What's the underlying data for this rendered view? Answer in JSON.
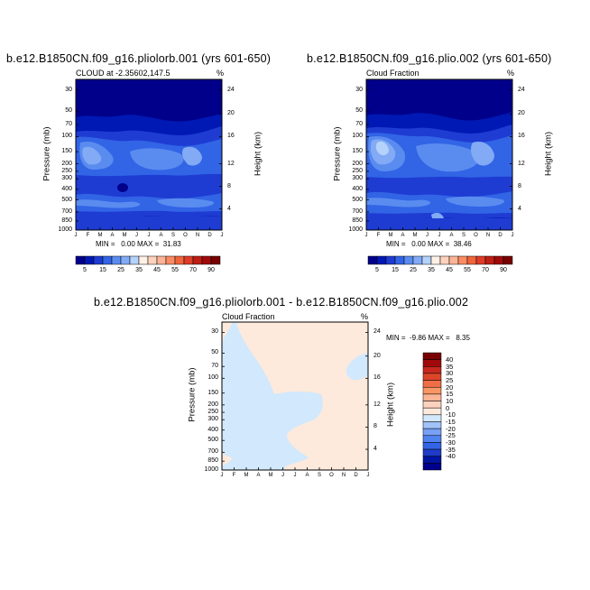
{
  "panel1": {
    "title": "b.e12.B1850CN.f09_g16.pliolorb.001 (yrs 601-650)",
    "subtitle": "CLOUD at -2.35602,147.5",
    "units": "%",
    "minmax": "MIN =   0.00 MAX =  31.83"
  },
  "panel2": {
    "title": "b.e12.B1850CN.f09_g16.plio.002 (yrs 601-650)",
    "subtitle": "Cloud Fraction",
    "units": "%",
    "minmax": "MIN =   0.00 MAX =  38.46"
  },
  "panel3": {
    "title": "b.e12.B1850CN.f09_g16.pliolorb.001 - b.e12.B1850CN.f09_g16.plio.002",
    "subtitle": "Cloud Fraction",
    "units": "%",
    "minmax": "MIN =  -9.86 MAX =   8.35"
  },
  "axes": {
    "ylabel_left": "Pressure (mb)",
    "ylabel_right": "Height (km)"
  },
  "colors": {
    "seq": [
      "#00008b",
      "#0019b4",
      "#1e3cd2",
      "#3264e6",
      "#5a8cf0",
      "#82aaf5",
      "#b4d2fa",
      "#fff0e6",
      "#fdd2be",
      "#fcb496",
      "#fa8c64",
      "#f0643c",
      "#dc3c28",
      "#be1e14",
      "#a00a0a",
      "#780000"
    ],
    "diff": [
      "#00008b",
      "#0014a0",
      "#1e3cc8",
      "#3264e6",
      "#5082f0",
      "#78a0f5",
      "#a0c3fa",
      "#d2e8fc",
      "#fdeadc",
      "#fcd2be",
      "#fab496",
      "#f89664",
      "#f06e46",
      "#dc4628",
      "#c8281e",
      "#a00a0a",
      "#780000"
    ]
  },
  "chart_data": [
    {
      "type": "heatmap",
      "title": "b.e12.B1850CN.f09_g16.pliolorb.001 (yrs 601-650)",
      "variable": "CLOUD at -2.35602,147.5",
      "units": "%",
      "xlabel": "",
      "ylabel": "Pressure (mb)",
      "ylabel_right": "Height (km)",
      "x_ticks": [
        "J",
        "F",
        "M",
        "A",
        "M",
        "J",
        "J",
        "A",
        "S",
        "O",
        "N",
        "D",
        "J"
      ],
      "y_ticks": [
        "30",
        "50",
        "70",
        "100",
        "150",
        "200",
        "250",
        "300",
        "400",
        "500",
        "700",
        "850",
        "1000"
      ],
      "y_right_ticks": [
        "24",
        "20",
        "16",
        "12",
        "8",
        "4"
      ],
      "colorbar_labels": [
        "5",
        "15",
        "25",
        "35",
        "45",
        "55",
        "70",
        "90"
      ],
      "min": 0.0,
      "max": 31.83
    },
    {
      "type": "heatmap",
      "title": "b.e12.B1850CN.f09_g16.plio.002 (yrs 601-650)",
      "variable": "Cloud Fraction",
      "units": "%",
      "xlabel": "",
      "ylabel": "Pressure (mb)",
      "ylabel_right": "Height (km)",
      "x_ticks": [
        "J",
        "F",
        "M",
        "A",
        "M",
        "J",
        "J",
        "A",
        "S",
        "O",
        "N",
        "D",
        "J"
      ],
      "y_ticks": [
        "30",
        "50",
        "70",
        "100",
        "150",
        "200",
        "250",
        "300",
        "400",
        "500",
        "700",
        "850",
        "1000"
      ],
      "y_right_ticks": [
        "24",
        "20",
        "16",
        "12",
        "8",
        "4"
      ],
      "colorbar_labels": [
        "5",
        "15",
        "25",
        "35",
        "45",
        "55",
        "70",
        "90"
      ],
      "min": 0.0,
      "max": 38.46
    },
    {
      "type": "heatmap",
      "title": "b.e12.B1850CN.f09_g16.pliolorb.001 - b.e12.B1850CN.f09_g16.plio.002",
      "variable": "Cloud Fraction",
      "units": "%",
      "xlabel": "",
      "ylabel": "Pressure (mb)",
      "ylabel_right": "Height (km)",
      "x_ticks": [
        "J",
        "F",
        "M",
        "A",
        "M",
        "J",
        "J",
        "A",
        "S",
        "O",
        "N",
        "D",
        "J"
      ],
      "y_ticks": [
        "30",
        "50",
        "70",
        "100",
        "150",
        "200",
        "250",
        "300",
        "400",
        "500",
        "700",
        "850",
        "1000"
      ],
      "y_right_ticks": [
        "24",
        "20",
        "16",
        "12",
        "8",
        "4"
      ],
      "colorbar_labels": [
        "40",
        "35",
        "30",
        "25",
        "20",
        "15",
        "10",
        "0",
        "-10",
        "-15",
        "-20",
        "-25",
        "-30",
        "-35",
        "-40"
      ],
      "min": -9.86,
      "max": 8.35
    }
  ]
}
